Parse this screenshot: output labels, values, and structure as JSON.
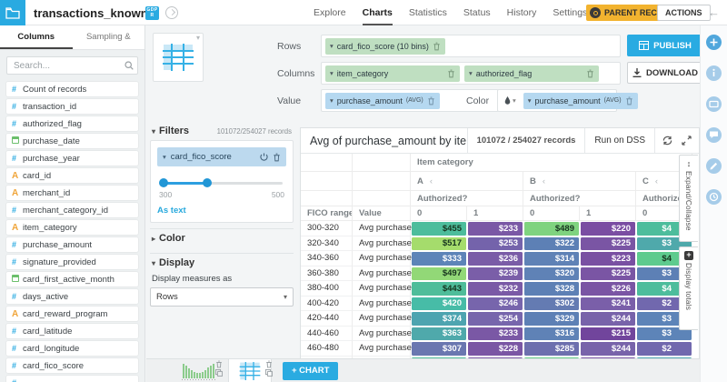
{
  "header": {
    "dataset_title": "transactions_known",
    "badge": "GDPR",
    "nav_items": [
      {
        "label": "Explore",
        "active": false
      },
      {
        "label": "Charts",
        "active": true
      },
      {
        "label": "Statistics",
        "active": false
      },
      {
        "label": "Status",
        "active": false
      },
      {
        "label": "History",
        "active": false
      },
      {
        "label": "Settings",
        "active": false
      }
    ],
    "parent_recipe_label": "PARENT RECIPE",
    "actions_label": "ACTIONS"
  },
  "sidebar": {
    "tabs": [
      {
        "label": "Columns",
        "active": true
      },
      {
        "label": "Sampling & Engine",
        "active": false
      }
    ],
    "search_placeholder": "Search...",
    "columns": [
      {
        "name": "Count of records",
        "type": "num"
      },
      {
        "name": "transaction_id",
        "type": "num"
      },
      {
        "name": "authorized_flag",
        "type": "num"
      },
      {
        "name": "purchase_date",
        "type": "date"
      },
      {
        "name": "purchase_year",
        "type": "num"
      },
      {
        "name": "card_id",
        "type": "text"
      },
      {
        "name": "merchant_id",
        "type": "text"
      },
      {
        "name": "merchant_category_id",
        "type": "num"
      },
      {
        "name": "item_category",
        "type": "text"
      },
      {
        "name": "purchase_amount",
        "type": "num"
      },
      {
        "name": "signature_provided",
        "type": "num"
      },
      {
        "name": "card_first_active_month",
        "type": "date"
      },
      {
        "name": "days_active",
        "type": "num"
      },
      {
        "name": "card_reward_program",
        "type": "text"
      },
      {
        "name": "card_latitude",
        "type": "num"
      },
      {
        "name": "card_longitude",
        "type": "num"
      },
      {
        "name": "card_fico_score",
        "type": "num"
      },
      {
        "name": "",
        "type": "num"
      }
    ]
  },
  "axes": {
    "rows_label": "Rows",
    "rows_pill": "card_fico_score (10 bins)",
    "columns_label": "Columns",
    "columns_pill_1": "item_category",
    "columns_pill_2": "authorized_flag",
    "value_label": "Value",
    "value_pill": "purchase_amount",
    "value_agg": "(AVG)",
    "color_label": "Color",
    "color_pill": "purchase_amount",
    "color_agg": "(AVG)"
  },
  "buttons": {
    "publish": "PUBLISH",
    "download": "DOWNLOAD",
    "add_chart": "+ CHART"
  },
  "filters": {
    "section_label": "Filters",
    "records": "101072/254027 records",
    "filter_name": "card_fico_score",
    "min_label": "300",
    "max_label": "500",
    "as_text": "As text"
  },
  "display": {
    "color_section": "Color",
    "display_section": "Display",
    "measures_label": "Display measures as",
    "measures_value": "Rows"
  },
  "chart_data": {
    "type": "pivot-table",
    "title": "Avg of purchase_amount by item_category an...",
    "records": "101072 / 254027 records",
    "run_label": "Run on DSS",
    "col_axis_label": "Item category",
    "row_axis_label": "FICO range",
    "value_col_label": "Value",
    "sub_axis_label": "Authorized?",
    "measure_label": "Avg purchase",
    "col_groups": [
      {
        "label": "A",
        "cols": [
          "0",
          "1"
        ]
      },
      {
        "label": "B",
        "cols": [
          "0",
          "1"
        ]
      },
      {
        "label": "C",
        "cols": [
          "0"
        ]
      }
    ],
    "rows": [
      {
        "range": "300-320",
        "cells": [
          {
            "v": "$455",
            "bg": "#4dbd9c",
            "fg": "dark"
          },
          {
            "v": "$233",
            "bg": "#7a58a5",
            "fg": "light"
          },
          {
            "v": "$489",
            "bg": "#7fd37f",
            "fg": "dark"
          },
          {
            "v": "$220",
            "bg": "#7a4da2",
            "fg": "light"
          },
          {
            "v": "$4",
            "bg": "#4dbd9c",
            "fg": "light"
          }
        ]
      },
      {
        "range": "320-340",
        "cells": [
          {
            "v": "$517",
            "bg": "#a5dc6c",
            "fg": "dark"
          },
          {
            "v": "$253",
            "bg": "#7463ab",
            "fg": "light"
          },
          {
            "v": "$322",
            "bg": "#5d80b5",
            "fg": "light"
          },
          {
            "v": "$225",
            "bg": "#7a55a4",
            "fg": "light"
          },
          {
            "v": "$3",
            "bg": "#4fa9ab",
            "fg": "light"
          }
        ]
      },
      {
        "range": "340-360",
        "cells": [
          {
            "v": "$333",
            "bg": "#5d84b8",
            "fg": "light"
          },
          {
            "v": "$236",
            "bg": "#7a5ca7",
            "fg": "light"
          },
          {
            "v": "$314",
            "bg": "#5f82b6",
            "fg": "light"
          },
          {
            "v": "$223",
            "bg": "#7950a2",
            "fg": "light"
          },
          {
            "v": "$4",
            "bg": "#5ecb8e",
            "fg": "dark"
          }
        ]
      },
      {
        "range": "360-380",
        "cells": [
          {
            "v": "$497",
            "bg": "#92d877",
            "fg": "dark"
          },
          {
            "v": "$239",
            "bg": "#7a5ea8",
            "fg": "light"
          },
          {
            "v": "$320",
            "bg": "#5f82b6",
            "fg": "light"
          },
          {
            "v": "$225",
            "bg": "#7a55a4",
            "fg": "light"
          },
          {
            "v": "$3",
            "bg": "#5d80b5",
            "fg": "light"
          }
        ]
      },
      {
        "range": "380-400",
        "cells": [
          {
            "v": "$443",
            "bg": "#4fbd9a",
            "fg": "dark"
          },
          {
            "v": "$232",
            "bg": "#7a5aa6",
            "fg": "light"
          },
          {
            "v": "$328",
            "bg": "#5d80b5",
            "fg": "light"
          },
          {
            "v": "$226",
            "bg": "#7a55a4",
            "fg": "light"
          },
          {
            "v": "$4",
            "bg": "#4dbd9c",
            "fg": "light"
          }
        ]
      },
      {
        "range": "400-420",
        "cells": [
          {
            "v": "$420",
            "bg": "#47bca7",
            "fg": "light"
          },
          {
            "v": "$246",
            "bg": "#7765ac",
            "fg": "light"
          },
          {
            "v": "$302",
            "bg": "#647bb2",
            "fg": "light"
          },
          {
            "v": "$241",
            "bg": "#7a5fa9",
            "fg": "light"
          },
          {
            "v": "$2",
            "bg": "#7168ae",
            "fg": "light"
          }
        ]
      },
      {
        "range": "420-440",
        "cells": [
          {
            "v": "$374",
            "bg": "#4da4b0",
            "fg": "light"
          },
          {
            "v": "$254",
            "bg": "#7766ac",
            "fg": "light"
          },
          {
            "v": "$329",
            "bg": "#5d80b5",
            "fg": "light"
          },
          {
            "v": "$244",
            "bg": "#7863aa",
            "fg": "light"
          },
          {
            "v": "$3",
            "bg": "#5d84b8",
            "fg": "light"
          }
        ]
      },
      {
        "range": "440-460",
        "cells": [
          {
            "v": "$363",
            "bg": "#4fa9ab",
            "fg": "light"
          },
          {
            "v": "$233",
            "bg": "#7a58a5",
            "fg": "light"
          },
          {
            "v": "$316",
            "bg": "#5f82b6",
            "fg": "light"
          },
          {
            "v": "$215",
            "bg": "#71459c",
            "fg": "light"
          },
          {
            "v": "$3",
            "bg": "#5d84b8",
            "fg": "light"
          }
        ]
      },
      {
        "range": "460-480",
        "cells": [
          {
            "v": "$307",
            "bg": "#6a77b0",
            "fg": "light"
          },
          {
            "v": "$228",
            "bg": "#7a56a4",
            "fg": "light"
          },
          {
            "v": "$285",
            "bg": "#6d6fae",
            "fg": "light"
          },
          {
            "v": "$244",
            "bg": "#7863aa",
            "fg": "light"
          },
          {
            "v": "$2",
            "bg": "#7168ae",
            "fg": "light"
          }
        ]
      }
    ],
    "partial_row_colors": [
      "#4fbd9a",
      "#7a58a5",
      "#66cc88",
      "#7a55a4",
      "#4da4b0"
    ],
    "side_tabs": [
      {
        "label": "Expand/Collapse"
      },
      {
        "label": "Display totals"
      }
    ]
  },
  "right_rail": {
    "icons": [
      "add",
      "info",
      "card",
      "comment",
      "edit",
      "history"
    ]
  },
  "colors": {
    "accent_blue": "#29aae1",
    "recipe_orange": "#f2b32f",
    "pill_green": "#bfdfc1",
    "pill_blue": "#b5d8f0"
  }
}
